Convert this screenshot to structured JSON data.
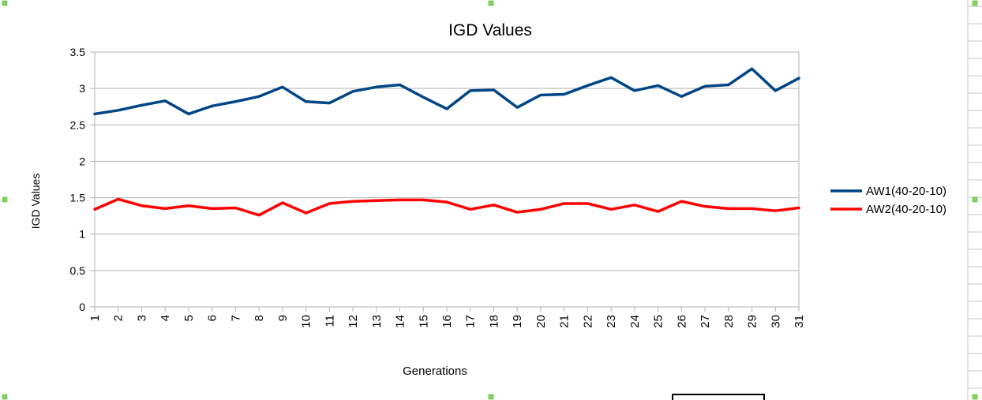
{
  "chart_data": {
    "type": "line",
    "title": "IGD Values",
    "xlabel": "Generations",
    "ylabel": "IGD Values",
    "categories": [
      "1",
      "2",
      "3",
      "4",
      "5",
      "6",
      "7",
      "8",
      "9",
      "10",
      "11",
      "12",
      "13",
      "14",
      "15",
      "16",
      "17",
      "18",
      "19",
      "20",
      "21",
      "22",
      "23",
      "24",
      "25",
      "26",
      "27",
      "28",
      "29",
      "30",
      "31"
    ],
    "ylim": [
      0,
      3.5
    ],
    "yticks": [
      "0",
      "0.5",
      "1",
      "1.5",
      "2",
      "2.5",
      "3",
      "3.5"
    ],
    "grid": true,
    "legend_position": "right",
    "series": [
      {
        "name": "AW1(40-20-10)",
        "color": "#004586",
        "values": [
          2.65,
          2.7,
          2.77,
          2.83,
          2.65,
          2.76,
          2.82,
          2.89,
          3.02,
          2.82,
          2.8,
          2.96,
          3.02,
          3.05,
          2.88,
          2.72,
          2.97,
          2.98,
          2.74,
          2.91,
          2.92,
          3.04,
          3.15,
          2.97,
          3.04,
          2.89,
          3.03,
          3.05,
          3.27,
          2.97,
          3.14
        ]
      },
      {
        "name": "AW2(40-20-10)",
        "color": "#ff0000",
        "values": [
          1.34,
          1.48,
          1.39,
          1.35,
          1.39,
          1.35,
          1.36,
          1.26,
          1.43,
          1.29,
          1.42,
          1.45,
          1.46,
          1.47,
          1.47,
          1.44,
          1.34,
          1.4,
          1.3,
          1.34,
          1.42,
          1.42,
          1.34,
          1.4,
          1.31,
          1.45,
          1.38,
          1.35,
          1.35,
          1.32,
          1.36
        ]
      }
    ]
  }
}
